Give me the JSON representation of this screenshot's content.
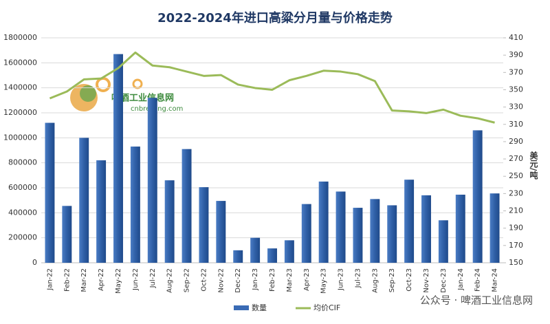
{
  "chart_data": {
    "type": "bar_line",
    "title": "2022-2024年进口高粱分月量与价格走势",
    "y2_label": "美元/吨",
    "categories": [
      "Jan-22",
      "Feb-22",
      "Mar-22",
      "Apr-22",
      "May-22",
      "Jun-22",
      "Jul-22",
      "Aug-22",
      "Sep-22",
      "Oct-22",
      "Nov-22",
      "Dec-22",
      "Jan-23",
      "Feb-23",
      "Mar-23",
      "Apr-23",
      "May-23",
      "Jun-23",
      "Jul-23",
      "Aug-23",
      "Sep-23",
      "Oct-23",
      "Nov-23",
      "Dec-23",
      "Jan-24",
      "Feb-24",
      "Mar-24"
    ],
    "series": [
      {
        "name": "数量",
        "type": "bar",
        "color": "#3a6bb5",
        "values": [
          1120000,
          455000,
          1000000,
          820000,
          1670000,
          930000,
          1320000,
          660000,
          910000,
          605000,
          495000,
          100000,
          200000,
          115000,
          180000,
          470000,
          650000,
          570000,
          440000,
          510000,
          460000,
          665000,
          540000,
          340000,
          545000,
          1060000,
          555000
        ]
      },
      {
        "name": "均价CIF",
        "type": "line",
        "axis": "y2",
        "color": "#9bbb59",
        "values": [
          340,
          348,
          362,
          363,
          375,
          393,
          378,
          376,
          371,
          366,
          367,
          356,
          352,
          350,
          361,
          366,
          372,
          371,
          368,
          360,
          326,
          325,
          323,
          327,
          320,
          317,
          312
        ]
      }
    ],
    "ylim": [
      0,
      1800000
    ],
    "yticks": [
      0,
      200000,
      400000,
      600000,
      800000,
      1000000,
      1200000,
      1400000,
      1600000,
      1800000
    ],
    "y2lim": [
      150,
      410
    ],
    "y2ticks": [
      150,
      170,
      190,
      210,
      230,
      250,
      270,
      290,
      310,
      330,
      350,
      370,
      390,
      410
    ],
    "grid": true,
    "legend": "bottom",
    "annotations": [
      "啤酒工业信息网",
      "cnbrewing.com",
      "公众号 · 啤酒工业信息网"
    ]
  }
}
